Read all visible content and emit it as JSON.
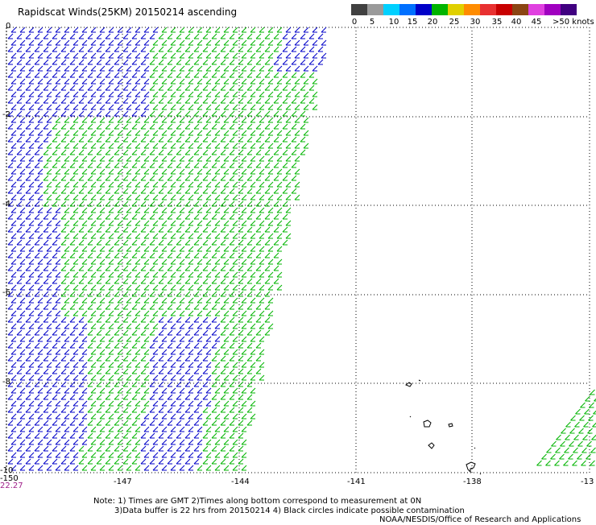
{
  "title": "Rapidscat Winds(25KM) 20150214 ascending",
  "legend": {
    "labels": [
      "0",
      "5",
      "10",
      "15",
      "20",
      "25",
      "30",
      "35",
      "40",
      "45",
      ">50 knots"
    ],
    "colors": [
      "#404040",
      "#9a9a9a",
      "#00d0ff",
      "#0070ff",
      "#0000c8",
      "#00b400",
      "#e0d000",
      "#ff8c00",
      "#e83030",
      "#c80000",
      "#8b4513",
      "#e040e0",
      "#a000c0",
      "#400080"
    ],
    "speed_colors": {
      "blue": "#0000c8",
      "green": "#00b400"
    }
  },
  "axes": {
    "x_ticks": [
      "-150",
      "-147",
      "-144",
      "-141",
      "-138",
      "-13"
    ],
    "y_ticks": [
      "0",
      "-2",
      "-4",
      "-6",
      "-8",
      "-10"
    ]
  },
  "time_label": "22.27",
  "notes": {
    "line1": "Note: 1) Times are GMT 2)Times along bottom correspond to measurement at 0N",
    "line2": "3)Data buffer is 22 hrs from 20150214 4) Black circles indicate possible contamination",
    "line3": "NOAA/NESDIS/Office of Research and Applications"
  }
}
